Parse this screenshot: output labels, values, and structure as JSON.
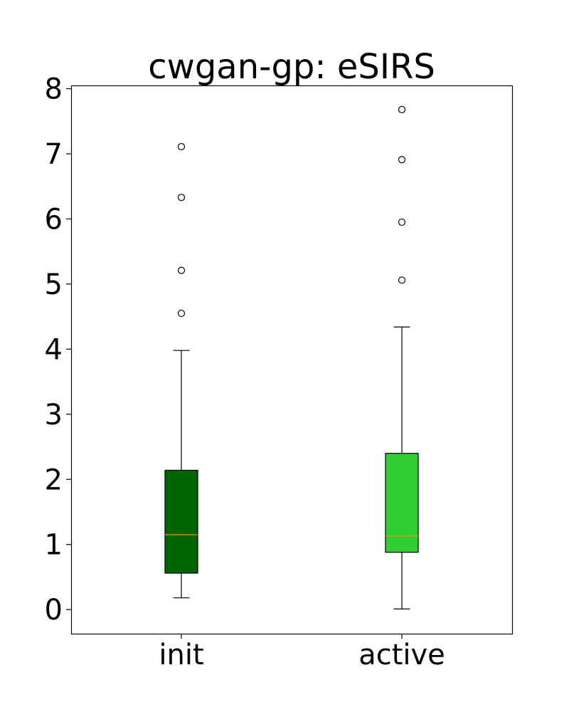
{
  "chart_data": {
    "type": "box",
    "title": "cwgan-gp: eSIRS",
    "xlabel": "",
    "ylabel": "",
    "categories": [
      "init",
      "active"
    ],
    "ylim": [
      -0.37,
      8.05
    ],
    "yticks": [
      0,
      1,
      2,
      3,
      4,
      5,
      6,
      7,
      8
    ],
    "grid": false,
    "boxes": [
      {
        "label": "init",
        "whisker_low": 0.18,
        "q1": 0.56,
        "median": 1.15,
        "q3": 2.14,
        "whisker_high": 3.98,
        "outliers": [
          4.55,
          5.21,
          6.33,
          7.11
        ],
        "color": "#006400"
      },
      {
        "label": "active",
        "whisker_low": 0.01,
        "q1": 0.88,
        "median": 1.13,
        "q3": 2.4,
        "whisker_high": 4.34,
        "outliers": [
          5.06,
          5.95,
          6.91,
          7.68
        ],
        "color": "#32cd32"
      }
    ],
    "median_color": "#ff8c00"
  }
}
